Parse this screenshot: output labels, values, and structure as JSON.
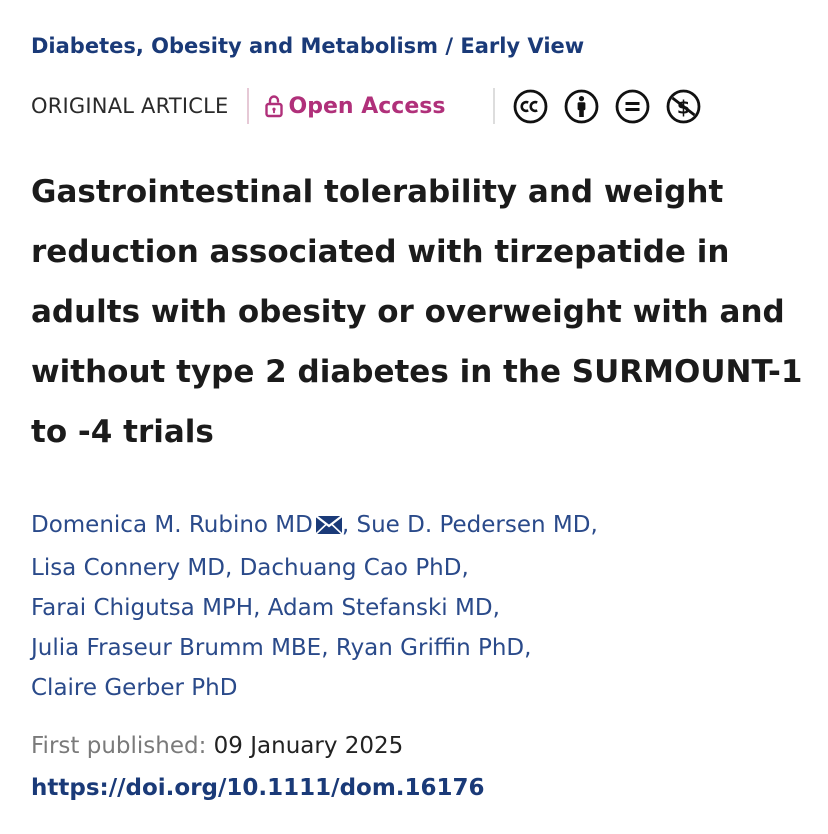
{
  "journal": {
    "name": "Diabetes, Obesity and Metabolism",
    "separator": " / ",
    "section": "Early View"
  },
  "meta": {
    "article_type": "ORIGINAL ARTICLE",
    "open_access_label": "Open Access",
    "access_color": "#b0307a",
    "license_icons": [
      "cc-icon",
      "by-attribution-icon",
      "no-derivatives-icon",
      "non-commercial-icon"
    ]
  },
  "article": {
    "title": "Gastrointestinal tolerability and weight reduction associated with tirzepatide in adults with obesity or overweight with and without type 2 diabetes in the SURMOUNT-1 to -4 trials"
  },
  "authors": [
    {
      "name": "Domenica M. Rubino MD",
      "corresponding": true
    },
    {
      "name": "Sue D. Pedersen MD"
    },
    {
      "name": "Lisa Connery MD"
    },
    {
      "name": "Dachuang Cao PhD"
    },
    {
      "name": "Farai Chigutsa MPH"
    },
    {
      "name": "Adam Stefanski MD"
    },
    {
      "name": "Julia Fraseur Brumm MBE"
    },
    {
      "name": "Ryan Griffin PhD"
    },
    {
      "name": "Claire Gerber PhD"
    }
  ],
  "publication": {
    "first_published_label": "First published:",
    "first_published_date": "09 January 2025",
    "doi_url": "https://doi.org/10.1111/dom.16176"
  },
  "colors": {
    "link": "#1a3a78",
    "author_link": "#2a4a8a",
    "muted": "#7a7a7a"
  }
}
